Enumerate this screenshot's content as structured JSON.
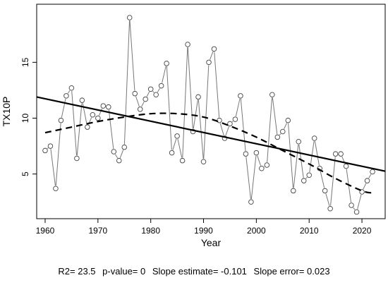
{
  "chart_data": {
    "type": "line",
    "title": "",
    "xlabel": "Year",
    "ylabel": "TX10P",
    "xlim": [
      1958.4,
      2024.4
    ],
    "ylim": [
      1.0,
      20.2
    ],
    "xticks": [
      1960,
      1970,
      1980,
      1990,
      2000,
      2010,
      2020
    ],
    "yticks": [
      5,
      10,
      15
    ],
    "grid": false,
    "legend": "none",
    "series": [
      {
        "style": "line-with-open-circles",
        "color": "#777777",
        "x": [
          1960,
          1961,
          1962,
          1963,
          1964,
          1965,
          1966,
          1967,
          1968,
          1969,
          1970,
          1971,
          1972,
          1973,
          1974,
          1975,
          1976,
          1977,
          1978,
          1979,
          1980,
          1981,
          1982,
          1983,
          1984,
          1985,
          1986,
          1987,
          1988,
          1989,
          1990,
          1991,
          1992,
          1993,
          1994,
          1995,
          1996,
          1997,
          1998,
          1999,
          2000,
          2001,
          2002,
          2003,
          2004,
          2005,
          2006,
          2007,
          2008,
          2009,
          2010,
          2011,
          2012,
          2013,
          2014,
          2015,
          2016,
          2017,
          2018,
          2019,
          2020,
          2021,
          2022
        ],
        "y": [
          7.1,
          7.5,
          3.7,
          9.8,
          12.0,
          12.7,
          6.4,
          11.6,
          9.2,
          10.3,
          10.0,
          11.1,
          11.0,
          7.0,
          6.2,
          7.4,
          19.0,
          12.2,
          10.8,
          11.7,
          12.6,
          12.1,
          12.9,
          14.9,
          6.9,
          8.4,
          6.2,
          16.6,
          8.8,
          11.9,
          6.1,
          15.0,
          16.2,
          9.8,
          8.2,
          9.5,
          9.9,
          12.0,
          6.8,
          2.5,
          6.9,
          5.5,
          5.8,
          12.1,
          8.3,
          8.8,
          9.8,
          3.5,
          7.9,
          4.4,
          4.9,
          8.2,
          5.5,
          3.5,
          1.9,
          6.8,
          6.8,
          5.7,
          2.2,
          1.6,
          3.4,
          4.4,
          5.2
        ]
      },
      {
        "style": "linear-trend",
        "color": "#000000",
        "x": [
          1958.4,
          2024.4
        ],
        "y": [
          11.9,
          5.25
        ]
      },
      {
        "style": "dashed-smooth",
        "color": "#000000",
        "x": [
          1960,
          1965,
          1970,
          1975,
          1980,
          1985,
          1990,
          1995,
          2000,
          2005,
          2010,
          2015,
          2020,
          2022
        ],
        "y": [
          8.7,
          9.2,
          9.7,
          10.1,
          10.4,
          10.4,
          10.1,
          9.3,
          8.3,
          7.1,
          5.9,
          4.6,
          3.5,
          3.3
        ]
      }
    ]
  },
  "stats": {
    "r2": "R2= 23.5",
    "pvalue": "p-value= 0",
    "slope": "Slope estimate= -0.101",
    "slope_error": "Slope error= 0.023"
  }
}
